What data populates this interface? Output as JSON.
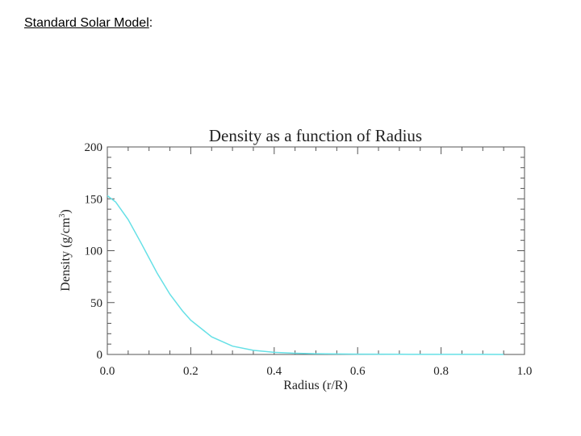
{
  "slide": {
    "heading": "Standard Solar Model",
    "heading_suffix": ":"
  },
  "chart_data": {
    "type": "line",
    "title": "Density as a function of Radius",
    "xlabel": "Radius (r/R)",
    "ylabel": "Density (g/cm",
    "ylabel_sup": "3",
    "ylabel_end": ")",
    "xlim": [
      0.0,
      1.0
    ],
    "ylim": [
      0,
      200
    ],
    "xticks": [
      "0.0",
      "0.2",
      "0.4",
      "0.6",
      "0.8",
      "1.0"
    ],
    "yticks": [
      "0",
      "50",
      "100",
      "150",
      "200"
    ],
    "grid": false,
    "series": [
      {
        "color": "#66e0e6",
        "x": [
          0.0,
          0.02,
          0.05,
          0.08,
          0.1,
          0.12,
          0.15,
          0.18,
          0.2,
          0.25,
          0.3,
          0.35,
          0.4,
          0.45,
          0.5,
          0.6,
          0.7,
          0.8,
          0.9,
          0.95
        ],
        "y": [
          153,
          147,
          130,
          108,
          93,
          78,
          58,
          42,
          33,
          17,
          8,
          4,
          2,
          1.2,
          0.7,
          0.3,
          0.15,
          0.08,
          0.04,
          0.02
        ]
      }
    ]
  }
}
